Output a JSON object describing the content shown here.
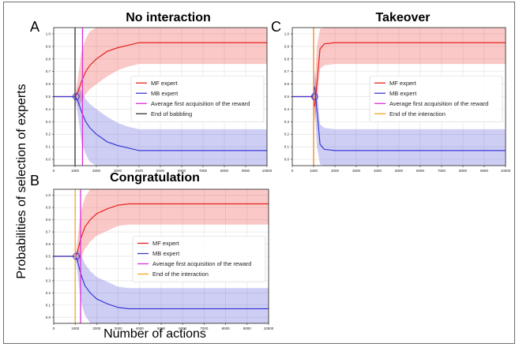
{
  "figure": {
    "ylabel": "Probabilities of selection of experts",
    "xlabel": "Number of actions"
  },
  "panels": [
    {
      "letter": "A",
      "title": "No interaction"
    },
    {
      "letter": "C",
      "title": "Takeover"
    },
    {
      "letter": "B",
      "title": "Congratulation"
    }
  ],
  "chart_data": [
    {
      "type": "line",
      "panel": "A",
      "title": "No interaction",
      "xlim": [
        0,
        10000
      ],
      "ylim": [
        -0.05,
        1.05
      ],
      "xticks": [
        0,
        1000,
        2000,
        3000,
        4000,
        5000,
        6000,
        7000,
        8000,
        9000,
        10000
      ],
      "yticks": [
        0.0,
        0.1,
        0.2,
        0.3,
        0.4,
        0.5,
        0.6,
        0.7,
        0.8,
        0.9,
        1.0
      ],
      "grid": true,
      "legend_position": "right",
      "series": [
        {
          "name": "MF expert",
          "color": "#e8221f",
          "x": [
            0,
            1000,
            1150,
            1300,
            1500,
            1700,
            2000,
            2500,
            3000,
            3500,
            4000,
            10000
          ],
          "y": [
            0.5,
            0.5,
            0.54,
            0.62,
            0.7,
            0.75,
            0.8,
            0.86,
            0.89,
            0.91,
            0.93,
            0.93
          ],
          "upper": [
            0.5,
            0.5,
            0.66,
            0.86,
            0.96,
            1.02,
            1.05,
            1.05,
            1.05,
            1.05,
            1.05,
            1.05
          ],
          "lower": [
            0.5,
            0.5,
            0.42,
            0.46,
            0.52,
            0.56,
            0.6,
            0.66,
            0.71,
            0.74,
            0.76,
            0.76
          ]
        },
        {
          "name": "MB expert",
          "color": "#3a3ad6",
          "x": [
            0,
            1000,
            1150,
            1300,
            1500,
            1700,
            2000,
            2500,
            3000,
            3500,
            4000,
            10000
          ],
          "y": [
            0.5,
            0.5,
            0.46,
            0.38,
            0.3,
            0.25,
            0.2,
            0.14,
            0.11,
            0.09,
            0.07,
            0.07
          ],
          "upper": [
            0.5,
            0.5,
            0.58,
            0.54,
            0.48,
            0.44,
            0.4,
            0.34,
            0.29,
            0.26,
            0.24,
            0.24
          ],
          "lower": [
            0.5,
            0.5,
            0.34,
            0.14,
            0.04,
            -0.02,
            -0.05,
            -0.05,
            -0.05,
            -0.05,
            -0.05,
            -0.05
          ]
        }
      ],
      "vlines": [
        {
          "name": "Average first acquisition of the reward",
          "x": 1350,
          "color": "#dc2fd8"
        },
        {
          "name": "End of babbling",
          "x": 1000,
          "color": "#333333"
        }
      ]
    },
    {
      "type": "line",
      "panel": "C",
      "title": "Takeover",
      "xlim": [
        0,
        10000
      ],
      "ylim": [
        -0.05,
        1.05
      ],
      "xticks": [
        0,
        1000,
        2000,
        3000,
        4000,
        5000,
        6000,
        7000,
        8000,
        9000,
        10000
      ],
      "yticks": [
        0.0,
        0.1,
        0.2,
        0.3,
        0.4,
        0.5,
        0.6,
        0.7,
        0.8,
        0.9,
        1.0
      ],
      "grid": true,
      "legend_position": "right",
      "series": [
        {
          "name": "MF expert",
          "color": "#e8221f",
          "x": [
            0,
            950,
            1050,
            1150,
            1300,
            1500,
            2000,
            3000,
            10000
          ],
          "y": [
            0.5,
            0.5,
            0.42,
            0.6,
            0.88,
            0.92,
            0.93,
            0.93,
            0.93
          ],
          "upper": [
            0.5,
            0.5,
            0.56,
            0.9,
            1.04,
            1.05,
            1.05,
            1.05,
            1.05
          ],
          "lower": [
            0.5,
            0.5,
            0.3,
            0.42,
            0.72,
            0.75,
            0.76,
            0.76,
            0.76
          ]
        },
        {
          "name": "MB expert",
          "color": "#3a3ad6",
          "x": [
            0,
            950,
            1050,
            1150,
            1300,
            1500,
            2000,
            3000,
            10000
          ],
          "y": [
            0.5,
            0.5,
            0.58,
            0.4,
            0.12,
            0.08,
            0.07,
            0.07,
            0.07
          ],
          "upper": [
            0.5,
            0.5,
            0.7,
            0.58,
            0.28,
            0.25,
            0.24,
            0.24,
            0.24
          ],
          "lower": [
            0.5,
            0.5,
            0.44,
            0.1,
            -0.04,
            -0.05,
            -0.05,
            -0.05,
            -0.05
          ]
        }
      ],
      "vlines": [
        {
          "name": "Average first acquisition of the reward",
          "x": 1000,
          "color": "#dc2fd8"
        },
        {
          "name": "End of the interaction",
          "x": 1000,
          "color": "#f5a623"
        }
      ]
    },
    {
      "type": "line",
      "panel": "B",
      "title": "Congratulation",
      "xlim": [
        0,
        10000
      ],
      "ylim": [
        -0.05,
        1.05
      ],
      "xticks": [
        0,
        1000,
        2000,
        3000,
        4000,
        5000,
        6000,
        7000,
        8000,
        9000,
        10000
      ],
      "yticks": [
        0.0,
        0.1,
        0.2,
        0.3,
        0.4,
        0.5,
        0.6,
        0.7,
        0.8,
        0.9,
        1.0
      ],
      "grid": true,
      "legend_position": "right",
      "series": [
        {
          "name": "MF expert",
          "color": "#e8221f",
          "x": [
            0,
            1000,
            1100,
            1250,
            1450,
            1700,
            2000,
            2500,
            3000,
            3500,
            10000
          ],
          "y": [
            0.5,
            0.5,
            0.53,
            0.64,
            0.74,
            0.8,
            0.85,
            0.89,
            0.92,
            0.93,
            0.93
          ],
          "upper": [
            0.5,
            0.5,
            0.62,
            0.86,
            0.98,
            1.05,
            1.05,
            1.05,
            1.05,
            1.05,
            1.05
          ],
          "lower": [
            0.5,
            0.5,
            0.44,
            0.48,
            0.56,
            0.62,
            0.67,
            0.71,
            0.75,
            0.76,
            0.76
          ]
        },
        {
          "name": "MB expert",
          "color": "#3a3ad6",
          "x": [
            0,
            1000,
            1100,
            1250,
            1450,
            1700,
            2000,
            2500,
            3000,
            3500,
            10000
          ],
          "y": [
            0.5,
            0.5,
            0.47,
            0.36,
            0.26,
            0.2,
            0.15,
            0.11,
            0.08,
            0.07,
            0.07
          ],
          "upper": [
            0.5,
            0.5,
            0.56,
            0.52,
            0.44,
            0.38,
            0.33,
            0.29,
            0.25,
            0.24,
            0.24
          ],
          "lower": [
            0.5,
            0.5,
            0.38,
            0.14,
            0.02,
            -0.05,
            -0.05,
            -0.05,
            -0.05,
            -0.05,
            -0.05
          ]
        }
      ],
      "vlines": [
        {
          "name": "Average first acquisition of the reward",
          "x": 1250,
          "color": "#dc2fd8"
        },
        {
          "name": "End of the interaction",
          "x": 1000,
          "color": "#f5a623"
        }
      ]
    }
  ]
}
